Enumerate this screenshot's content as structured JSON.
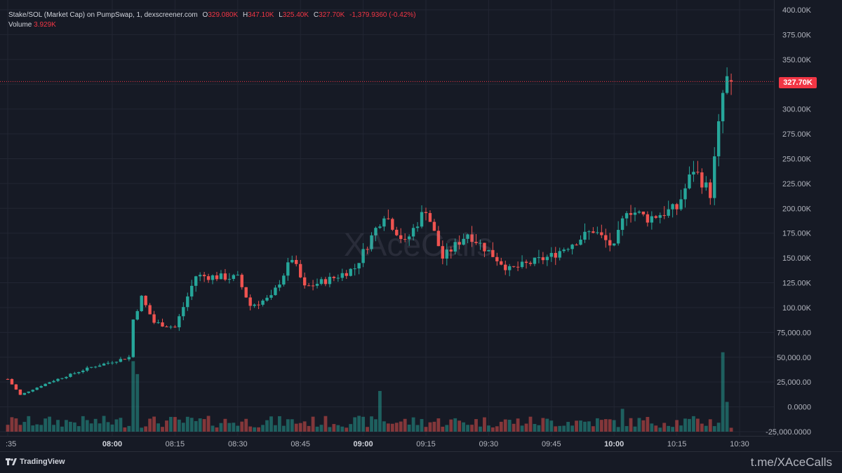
{
  "header": {
    "symbol": "Stake/SOL (Market Cap) on PumpSwap, 1, dexscreener.com",
    "o_label": "O",
    "o_value": "329.080K",
    "h_label": "H",
    "h_value": "347.10K",
    "l_label": "L",
    "l_value": "325.40K",
    "c_label": "C",
    "c_value": "327.70K",
    "change": "-1,379.9360 (-0.42%)",
    "volume_label": "Volume",
    "volume_value": "3.929K"
  },
  "watermark": "XAceCalls",
  "footer": {
    "brand": "TradingView",
    "link": "t.me/XAceCalls"
  },
  "colors": {
    "up": "#26a69a",
    "down": "#ef5350",
    "background": "#161a25",
    "grid": "#232733"
  },
  "chart_data": {
    "type": "candlestick",
    "y_ticks": [
      "400.00K",
      "375.00K",
      "350.00K",
      "325.00K",
      "300.00K",
      "275.00K",
      "250.00K",
      "225.00K",
      "200.00K",
      "175.00K",
      "150.00K",
      "125.00K",
      "100.00K",
      "75,000.00",
      "50,000.00",
      "25,000.00",
      "0.0000",
      "-25,000.0000"
    ],
    "y_range": [
      -25000,
      400000
    ],
    "x_ticks": [
      ":35",
      "08:00",
      "08:15",
      "08:30",
      "08:45",
      "09:00",
      "09:15",
      "09:30",
      "09:45",
      "10:00",
      "10:15",
      "10:30"
    ],
    "x_ticks_bold": [
      "08:00",
      "09:00",
      "10:00"
    ],
    "current_price": 327700,
    "current_price_label": "327.70K",
    "close_path_key_points": [
      {
        "time": "07:35",
        "value": 28000
      },
      {
        "time": "07:38",
        "value": 12000
      },
      {
        "time": "07:45",
        "value": 25000
      },
      {
        "time": "07:55",
        "value": 40000
      },
      {
        "time": "08:04",
        "value": 50000
      },
      {
        "time": "08:05",
        "value": 88000
      },
      {
        "time": "08:07",
        "value": 110000
      },
      {
        "time": "08:10",
        "value": 85000
      },
      {
        "time": "08:15",
        "value": 80000
      },
      {
        "time": "08:20",
        "value": 132000
      },
      {
        "time": "08:30",
        "value": 130000
      },
      {
        "time": "08:33",
        "value": 102000
      },
      {
        "time": "08:38",
        "value": 110000
      },
      {
        "time": "08:43",
        "value": 150000
      },
      {
        "time": "08:46",
        "value": 120000
      },
      {
        "time": "08:53",
        "value": 130000
      },
      {
        "time": "08:58",
        "value": 140000
      },
      {
        "time": "09:05",
        "value": 195000
      },
      {
        "time": "09:10",
        "value": 165000
      },
      {
        "time": "09:15",
        "value": 200000
      },
      {
        "time": "09:19",
        "value": 150000
      },
      {
        "time": "09:25",
        "value": 175000
      },
      {
        "time": "09:35",
        "value": 138000
      },
      {
        "time": "09:45",
        "value": 152000
      },
      {
        "time": "09:55",
        "value": 178000
      },
      {
        "time": "10:00",
        "value": 160000
      },
      {
        "time": "10:03",
        "value": 200000
      },
      {
        "time": "10:08",
        "value": 190000
      },
      {
        "time": "10:15",
        "value": 200000
      },
      {
        "time": "10:19",
        "value": 240000
      },
      {
        "time": "10:23",
        "value": 215000
      },
      {
        "time": "10:26",
        "value": 315000
      },
      {
        "time": "10:27",
        "value": 329080
      },
      {
        "time": "10:28",
        "value": 327700
      }
    ],
    "volume_key_points": [
      {
        "time": "08:05",
        "value": 71000
      },
      {
        "time": "08:06",
        "value": 58000
      },
      {
        "time": "09:04",
        "value": 41000
      },
      {
        "time": "10:02",
        "value": 23000
      },
      {
        "time": "10:26",
        "value": 80000
      },
      {
        "time": "10:27",
        "value": 30000
      },
      {
        "time": "10:28",
        "value": 3929
      }
    ]
  }
}
